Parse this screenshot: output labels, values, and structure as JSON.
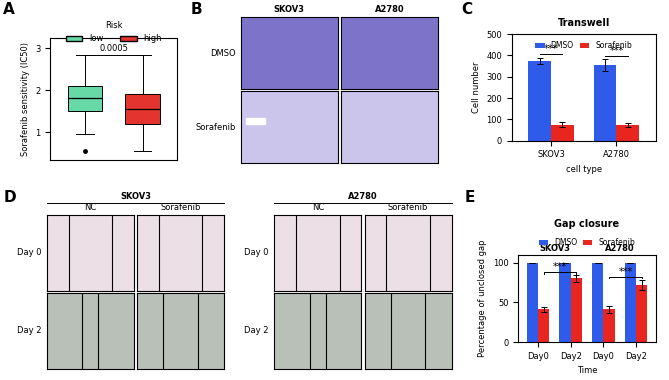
{
  "chart_data": [
    {
      "label": "A",
      "type": "box",
      "y_label": "Sorafenib sensitivity (IC50)",
      "legend_title": "Risk",
      "categories": [
        "low",
        "high"
      ],
      "colors": [
        "#66d9a6",
        "#e3342f"
      ],
      "stats": [
        {
          "whislo": 0.95,
          "q1": 1.5,
          "med": 1.82,
          "q3": 2.1,
          "whishi": 2.85,
          "fliers": [
            0.55
          ]
        },
        {
          "whislo": 0.55,
          "q1": 1.2,
          "med": 1.55,
          "q3": 1.92,
          "whishi": 2.85,
          "fliers": []
        }
      ],
      "annotation": "0.0005",
      "bracket_y": 2.85,
      "ylim": [
        0.35,
        3.25
      ],
      "yticks": [
        1,
        2,
        3
      ],
      "tick_labels": "y",
      "legend": "upper center"
    },
    {
      "label": "C",
      "type": "bar",
      "title": "Transwell",
      "x_label": "cell type",
      "y_label": "Cell number",
      "categories": [
        "SKOV3",
        "A2780"
      ],
      "series": [
        {
          "name": "DMSO",
          "color": "#2f5bea",
          "values": [
            375,
            355
          ],
          "errors": [
            15,
            28
          ]
        },
        {
          "name": "Sorafenib",
          "color": "#e8261f",
          "values": [
            75,
            72
          ],
          "errors": [
            12,
            9
          ]
        }
      ],
      "significance_labels": [
        "***",
        "***"
      ],
      "ylim": [
        0,
        500
      ],
      "yticks": [
        0,
        100,
        200,
        300,
        400,
        500
      ],
      "legend": "upper center"
    },
    {
      "label": "E",
      "type": "bar",
      "title": "Gap closure",
      "x_label": "Time",
      "y_label": "Percentage of unclosed gap",
      "categories": [
        "Day0",
        "Day2",
        "Day0",
        "Day2"
      ],
      "groups": [
        "SKOV3",
        "A2780"
      ],
      "series": [
        {
          "name": "DMSO",
          "color": "#2f5bea",
          "values": [
            100,
            100,
            100,
            100
          ],
          "errors": [
            0,
            0,
            0,
            0
          ]
        },
        {
          "name": "Sorafenib",
          "color": "#e8261f",
          "values": [
            41,
            80,
            41,
            72
          ],
          "errors": [
            3,
            4,
            4,
            6
          ]
        }
      ],
      "significance_labels": [
        "***",
        "***"
      ],
      "ylim": [
        0,
        110
      ],
      "yticks": [
        0,
        50,
        100
      ],
      "legend": "upper center"
    }
  ],
  "image_panels": [
    {
      "label": "B",
      "columns": [
        "SKOV3",
        "A2780"
      ],
      "rows": [
        "DMSO",
        "Sorafenib"
      ]
    },
    {
      "label": "D",
      "groups": [
        {
          "title": "SKOV3",
          "columns": [
            "NC",
            "Sorafenib"
          ],
          "rows": [
            "Day 0",
            "Day 2"
          ]
        },
        {
          "title": "A2780",
          "columns": [
            "NC",
            "Sorafenib"
          ],
          "rows": [
            "Day 0",
            "Day 2"
          ]
        }
      ]
    }
  ]
}
